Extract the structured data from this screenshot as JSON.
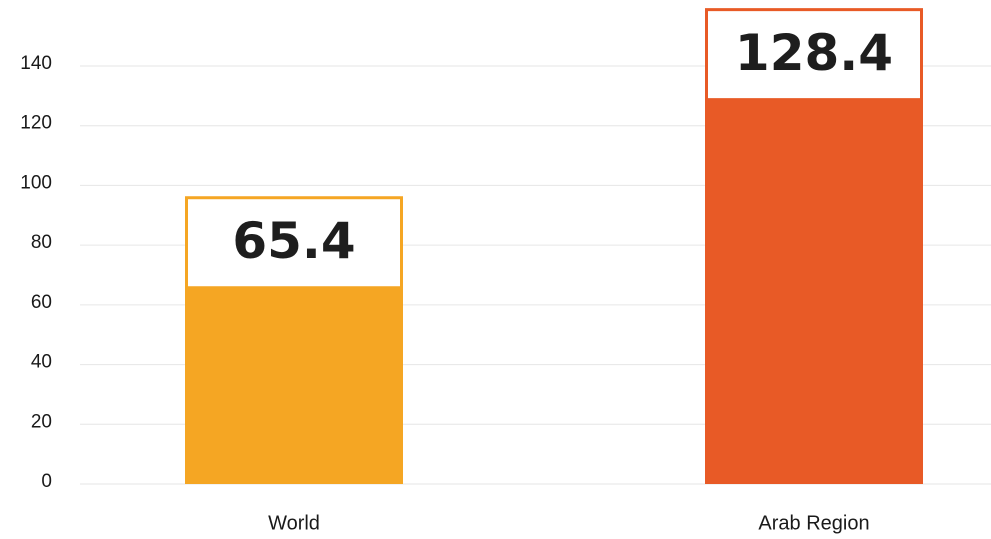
{
  "chart_data": {
    "type": "bar",
    "categories": [
      "World",
      "Arab Region"
    ],
    "values": [
      65.4,
      128.4
    ],
    "value_labels": [
      "65.4",
      "128.4"
    ],
    "colors": [
      "#F5A623",
      "#E85A26"
    ],
    "ylim": [
      0,
      150
    ],
    "yticks": [
      0,
      20,
      40,
      60,
      80,
      100,
      120,
      140
    ],
    "ytick_labels": [
      "0",
      "20",
      "40",
      "60",
      "80",
      "100",
      "120",
      "140"
    ],
    "title": "",
    "xlabel": "",
    "ylabel": "",
    "grid": true,
    "legend": false,
    "gridline_color": "#e6e6e6"
  }
}
